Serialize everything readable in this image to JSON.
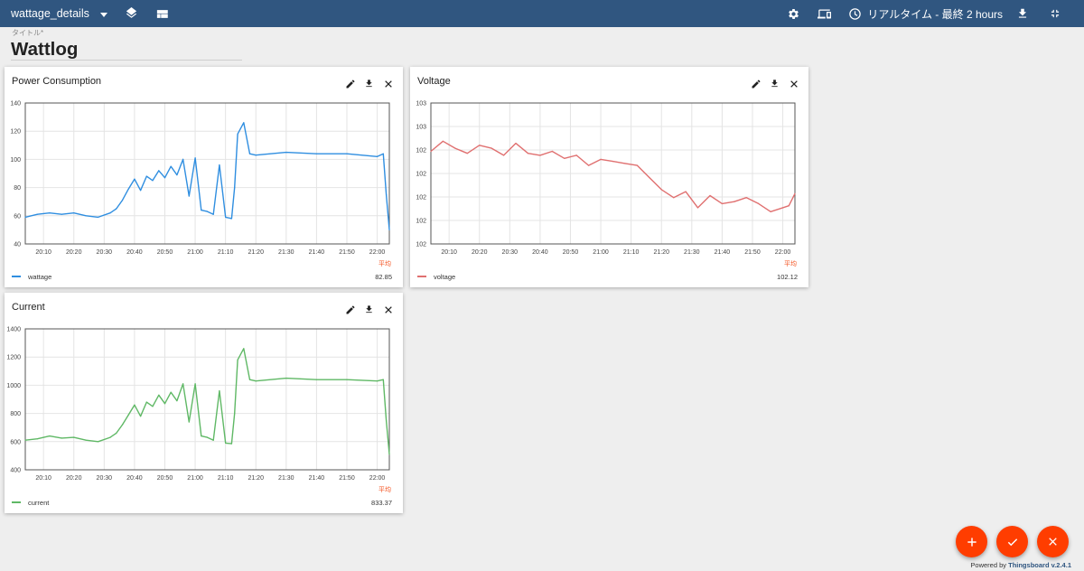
{
  "header": {
    "dashboard_name": "wattage_details",
    "timewindow_label": "リアルタイム - 最終 2 hours"
  },
  "title_widget": {
    "label": "タイトル*",
    "value": "Wattlog"
  },
  "colors": {
    "header_bg": "#305680",
    "fab": "#ff3d00",
    "wattage": "#2f8ee0",
    "voltage": "#e07070",
    "current": "#5fb865",
    "average_header": "#f4511e"
  },
  "icons": [
    "chevron-down-icon",
    "layers-icon",
    "view-compact-icon",
    "settings-icon",
    "devices-icon",
    "clock-icon",
    "download-icon",
    "fullscreen-exit-icon",
    "edit-icon",
    "close-icon",
    "add-icon",
    "check-icon"
  ],
  "widgets": [
    {
      "title": "Power Consumption",
      "legend_header": "平均",
      "series_name": "wattage",
      "avg": "82.85"
    },
    {
      "title": "Voltage",
      "legend_header": "平均",
      "series_name": "voltage",
      "avg": "102.12"
    },
    {
      "title": "Current",
      "legend_header": "平均",
      "series_name": "current",
      "avg": "833.37"
    }
  ],
  "chart_data": [
    {
      "type": "line",
      "x_unit": "time",
      "x_range": [
        "20:04",
        "22:04"
      ],
      "x_ticks": [
        "20:10",
        "20:20",
        "20:30",
        "20:40",
        "20:50",
        "21:00",
        "21:10",
        "21:20",
        "21:30",
        "21:40",
        "21:50",
        "22:00"
      ],
      "y_ticks": [
        "40",
        "60",
        "80",
        "100",
        "120",
        "140"
      ],
      "ylim": [
        40,
        140
      ],
      "grid": true,
      "series": [
        {
          "name": "wattage",
          "color": "#2f8ee0",
          "x": [
            "20:04",
            "20:08",
            "20:12",
            "20:16",
            "20:20",
            "20:24",
            "20:28",
            "20:32",
            "20:34",
            "20:36",
            "20:38",
            "20:40",
            "20:42",
            "20:44",
            "20:46",
            "20:48",
            "20:50",
            "20:52",
            "20:54",
            "20:56",
            "20:58",
            "21:00",
            "21:02",
            "21:04",
            "21:06",
            "21:08",
            "21:10",
            "21:12",
            "21:13",
            "21:14",
            "21:16",
            "21:18",
            "21:20",
            "21:30",
            "21:40",
            "21:50",
            "22:00",
            "22:02",
            "22:03",
            "22:04"
          ],
          "y": [
            59,
            61,
            62,
            61,
            62,
            60,
            59,
            62,
            65,
            71,
            79,
            86,
            78,
            88,
            85,
            92,
            87,
            95,
            89,
            100,
            74,
            101,
            64,
            63,
            61,
            96,
            59,
            58,
            80,
            118,
            126,
            104,
            103,
            105,
            104,
            104,
            102,
            104,
            75,
            50
          ]
        }
      ]
    },
    {
      "type": "line",
      "x_unit": "time",
      "x_range": [
        "20:04",
        "22:04"
      ],
      "x_ticks": [
        "20:10",
        "20:20",
        "20:30",
        "20:40",
        "20:50",
        "21:00",
        "21:10",
        "21:20",
        "21:30",
        "21:40",
        "21:50",
        "22:00"
      ],
      "y_ticks": [
        "102",
        "102",
        "102",
        "102",
        "102",
        "103",
        "103"
      ],
      "y_domain": [
        101.6,
        103.0
      ],
      "grid": true,
      "series": [
        {
          "name": "voltage",
          "color": "#e07070",
          "x": [
            "20:04",
            "20:08",
            "20:12",
            "20:16",
            "20:20",
            "20:24",
            "20:28",
            "20:32",
            "20:36",
            "20:40",
            "20:44",
            "20:48",
            "20:52",
            "20:56",
            "21:00",
            "21:04",
            "21:08",
            "21:12",
            "21:16",
            "21:20",
            "21:24",
            "21:28",
            "21:32",
            "21:36",
            "21:40",
            "21:44",
            "21:48",
            "21:52",
            "21:56",
            "22:00",
            "22:02",
            "22:04"
          ],
          "y": [
            102.52,
            102.62,
            102.55,
            102.5,
            102.58,
            102.55,
            102.48,
            102.6,
            102.5,
            102.48,
            102.52,
            102.45,
            102.48,
            102.38,
            102.44,
            102.42,
            102.4,
            102.38,
            102.26,
            102.14,
            102.06,
            102.12,
            101.96,
            102.08,
            102.0,
            102.02,
            102.06,
            102.0,
            101.92,
            101.96,
            101.98,
            102.1
          ]
        }
      ]
    },
    {
      "type": "line",
      "x_unit": "time",
      "x_range": [
        "20:04",
        "22:04"
      ],
      "x_ticks": [
        "20:10",
        "20:20",
        "20:30",
        "20:40",
        "20:50",
        "21:00",
        "21:10",
        "21:20",
        "21:30",
        "21:40",
        "21:50",
        "22:00"
      ],
      "y_ticks": [
        "400",
        "600",
        "800",
        "1000",
        "1200",
        "1400"
      ],
      "ylim": [
        400,
        1400
      ],
      "grid": true,
      "series": [
        {
          "name": "current",
          "color": "#5fb865",
          "x": [
            "20:04",
            "20:08",
            "20:12",
            "20:16",
            "20:20",
            "20:24",
            "20:28",
            "20:32",
            "20:34",
            "20:36",
            "20:38",
            "20:40",
            "20:42",
            "20:44",
            "20:46",
            "20:48",
            "20:50",
            "20:52",
            "20:54",
            "20:56",
            "20:58",
            "21:00",
            "21:02",
            "21:04",
            "21:06",
            "21:08",
            "21:10",
            "21:12",
            "21:13",
            "21:14",
            "21:16",
            "21:18",
            "21:20",
            "21:30",
            "21:40",
            "21:50",
            "22:00",
            "22:02",
            "22:03",
            "22:04"
          ],
          "y": [
            610,
            620,
            640,
            625,
            630,
            610,
            600,
            630,
            660,
            720,
            790,
            860,
            780,
            880,
            850,
            930,
            870,
            950,
            890,
            1010,
            740,
            1010,
            640,
            630,
            610,
            960,
            590,
            585,
            800,
            1180,
            1260,
            1040,
            1030,
            1050,
            1040,
            1040,
            1030,
            1040,
            750,
            510
          ]
        }
      ]
    }
  ]
}
